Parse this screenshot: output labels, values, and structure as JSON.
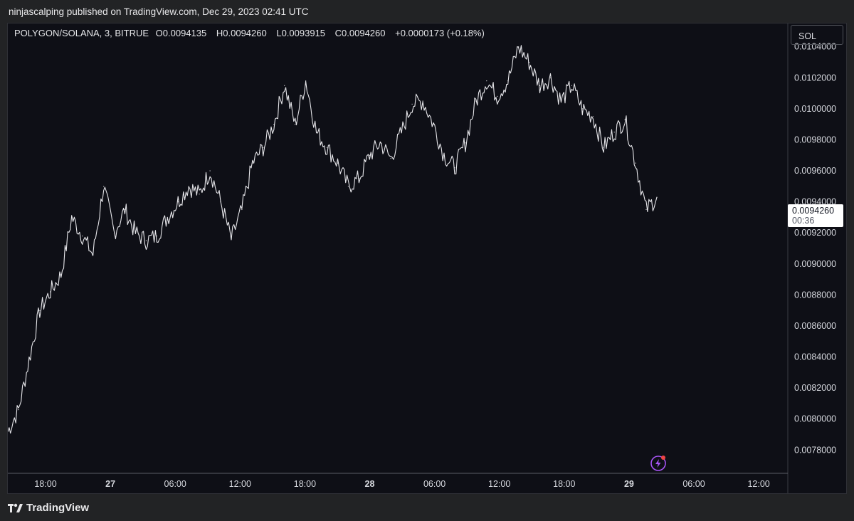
{
  "header": {
    "published": "ninjascalping published on TradingView.com, Dec 29, 2023 02:41 UTC"
  },
  "legend": {
    "symbol": "POLYGON/SOLANA, 3, BITRUE",
    "open": "O0.0094135",
    "high": "H0.0094260",
    "low": "L0.0093915",
    "close": "C0.0094260",
    "change": "+0.0000173 (+0.18%)"
  },
  "currency_button": "SOL",
  "last_price": {
    "value": "0.0094260",
    "countdown": "00:36"
  },
  "footer": {
    "brand": "TradingView"
  },
  "colors": {
    "background": "#0e0f16",
    "line": "#e6e6ea",
    "alert_dot": "#ef4444",
    "bolt": "#a855f7"
  },
  "chart_data": {
    "type": "line",
    "title": "POLYGON/SOLANA, 3, BITRUE",
    "x_tick_labels": [
      "18:00",
      "27",
      "06:00",
      "12:00",
      "18:00",
      "28",
      "06:00",
      "12:00",
      "18:00",
      "29",
      "06:00",
      "12:00"
    ],
    "x_tick_bold": [
      false,
      true,
      false,
      false,
      false,
      true,
      false,
      false,
      false,
      true,
      false,
      false
    ],
    "y_ticks": [
      "0.0104000",
      "0.0102000",
      "0.0100000",
      "0.0098000",
      "0.0096000",
      "0.0094000",
      "0.0092000",
      "0.0090000",
      "0.0088000",
      "0.0086000",
      "0.0084000",
      "0.0082000",
      "0.0080000",
      "0.0078000"
    ],
    "ylim": [
      0.00765,
      0.01055
    ],
    "x": [
      "Dec 26 14:00",
      "Dec 26 15:00",
      "Dec 26 16:00",
      "Dec 26 17:00",
      "Dec 26 18:00",
      "Dec 26 19:00",
      "Dec 26 20:00",
      "Dec 26 21:00",
      "Dec 26 22:00",
      "Dec 26 23:00",
      "Dec 27 00:00",
      "Dec 27 01:00",
      "Dec 27 02:00",
      "Dec 27 03:00",
      "Dec 27 04:00",
      "Dec 27 05:00",
      "Dec 27 06:00",
      "Dec 27 07:00",
      "Dec 27 08:00",
      "Dec 27 09:00",
      "Dec 27 10:00",
      "Dec 27 11:00",
      "Dec 27 12:00",
      "Dec 27 13:00",
      "Dec 27 14:00",
      "Dec 27 15:00",
      "Dec 27 16:00",
      "Dec 27 17:00",
      "Dec 27 18:00",
      "Dec 27 19:00",
      "Dec 27 20:00",
      "Dec 27 21:00",
      "Dec 27 22:00",
      "Dec 27 23:00",
      "Dec 28 00:00",
      "Dec 28 01:00",
      "Dec 28 02:00",
      "Dec 28 03:00",
      "Dec 28 04:00",
      "Dec 28 05:00",
      "Dec 28 06:00",
      "Dec 28 07:00",
      "Dec 28 08:00",
      "Dec 28 09:00",
      "Dec 28 10:00",
      "Dec 28 11:00",
      "Dec 28 12:00",
      "Dec 28 13:00",
      "Dec 28 14:00",
      "Dec 28 15:00",
      "Dec 28 16:00",
      "Dec 28 17:00",
      "Dec 28 18:00",
      "Dec 28 19:00",
      "Dec 28 20:00",
      "Dec 28 21:00",
      "Dec 28 22:00",
      "Dec 28 23:00",
      "Dec 29 00:00",
      "Dec 29 01:00",
      "Dec 29 02:00",
      "Dec 29 02:41"
    ],
    "series": [
      {
        "values": [
          0.00792,
          0.00806,
          0.00838,
          0.0087,
          0.00882,
          0.00893,
          0.0093,
          0.00918,
          0.00906,
          0.0095,
          0.0092,
          0.00935,
          0.0092,
          0.00915,
          0.00918,
          0.0093,
          0.0094,
          0.0095,
          0.00945,
          0.0096,
          0.0094,
          0.00916,
          0.00935,
          0.00965,
          0.00975,
          0.0099,
          0.01015,
          0.0099,
          0.01018,
          0.00985,
          0.00975,
          0.00965,
          0.0095,
          0.00955,
          0.0097,
          0.00978,
          0.00968,
          0.00985,
          0.01003,
          0.01005,
          0.0099,
          0.0097,
          0.00962,
          0.00978,
          0.01005,
          0.01018,
          0.01008,
          0.01018,
          0.0104,
          0.0103,
          0.01015,
          0.0102,
          0.01005,
          0.01015,
          0.01,
          0.00995,
          0.00975,
          0.00985,
          0.00993,
          0.00965,
          0.00935,
          0.00943
        ]
      }
    ]
  }
}
